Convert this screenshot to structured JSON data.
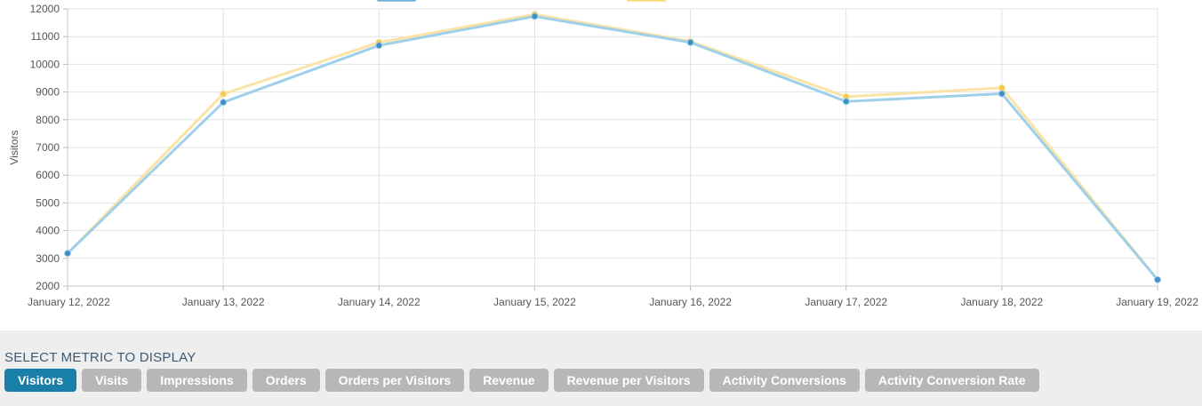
{
  "chart_data": {
    "type": "line",
    "ylabel": "Visitors",
    "ylim": [
      2000,
      12000
    ],
    "yticks": [
      "12000",
      "11000",
      "10000",
      "9000",
      "8000",
      "7000",
      "6000",
      "5000",
      "4000",
      "3000",
      "2000"
    ],
    "categories": [
      "January 12, 2022",
      "January 13, 2022",
      "January 14, 2022",
      "January 15, 2022",
      "January 16, 2022",
      "January 17, 2022",
      "January 18, 2022",
      "January 19, 2022"
    ],
    "grid": true,
    "legend": "top (clipped)",
    "series": [
      {
        "color": "#f7c948",
        "line_color": "#fbe3a6",
        "values": [
          3180,
          8930,
          10790,
          11800,
          10830,
          8830,
          9150,
          2230
        ]
      },
      {
        "color": "#3d8fc6",
        "line_color": "#9fd0ea",
        "values": [
          3180,
          8630,
          10680,
          11730,
          10790,
          8660,
          8940,
          2230
        ]
      }
    ]
  },
  "metric_panel": {
    "title": "SELECT METRIC TO DISPLAY",
    "buttons": [
      {
        "label": "Visitors",
        "active": true
      },
      {
        "label": "Visits",
        "active": false
      },
      {
        "label": "Impressions",
        "active": false
      },
      {
        "label": "Orders",
        "active": false
      },
      {
        "label": "Orders per Visitors",
        "active": false
      },
      {
        "label": "Revenue",
        "active": false
      },
      {
        "label": "Revenue per Visitors",
        "active": false
      },
      {
        "label": "Activity Conversions",
        "active": false
      },
      {
        "label": "Activity Conversion Rate",
        "active": false
      }
    ]
  }
}
